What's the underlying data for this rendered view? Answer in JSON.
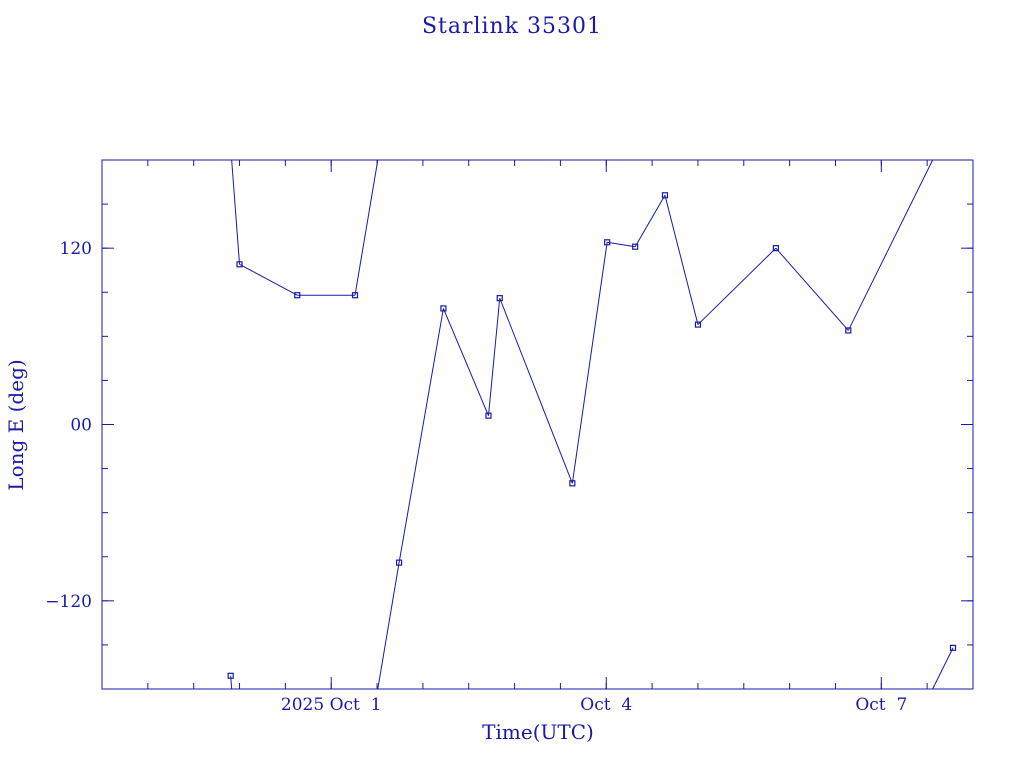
{
  "chart_data": {
    "type": "line",
    "title": "Starlink 35301",
    "xlabel": "Time(UTC)",
    "ylabel": "Long E (deg)",
    "xlim": [
      "2025-09-28 12:00",
      "2025-10-08 00:00"
    ],
    "ylim": [
      -180,
      180
    ],
    "xticks": [
      {
        "label": "2025 Oct  1",
        "x": "2025-10-01 00:00"
      },
      {
        "label": "Oct  4",
        "x": "2025-10-04 00:00"
      },
      {
        "label": "Oct  7",
        "x": "2025-10-07 00:00"
      }
    ],
    "yticks": [
      {
        "label": "−120",
        "y": -120
      },
      {
        "label": "00",
        "y": 0
      },
      {
        "label": "120",
        "y": 120
      }
    ],
    "grid": false,
    "color": "#1a1aa6",
    "series": [
      {
        "points": [
          {
            "x": "2025-09-29 21:41",
            "y": -171
          },
          {
            "x": "2025-09-30 00:00",
            "y": 109
          },
          {
            "x": "2025-09-30 15:07",
            "y": 88
          },
          {
            "x": "2025-10-01 06:14",
            "y": 88
          },
          {
            "x": "2025-10-01 17:46",
            "y": -94
          },
          {
            "x": "2025-10-02 05:22",
            "y": 79
          },
          {
            "x": "2025-10-02 17:10",
            "y": 6
          },
          {
            "x": "2025-10-02 20:07",
            "y": 86
          },
          {
            "x": "2025-10-03 15:07",
            "y": -40
          },
          {
            "x": "2025-10-04 00:14",
            "y": 124
          },
          {
            "x": "2025-10-04 07:34",
            "y": 121
          },
          {
            "x": "2025-10-04 15:22",
            "y": 156
          },
          {
            "x": "2025-10-05 00:00",
            "y": 68
          },
          {
            "x": "2025-10-05 20:24",
            "y": 120
          },
          {
            "x": "2025-10-06 15:22",
            "y": 64
          },
          {
            "x": "2025-10-07 18:46",
            "y": -152
          }
        ]
      }
    ]
  }
}
